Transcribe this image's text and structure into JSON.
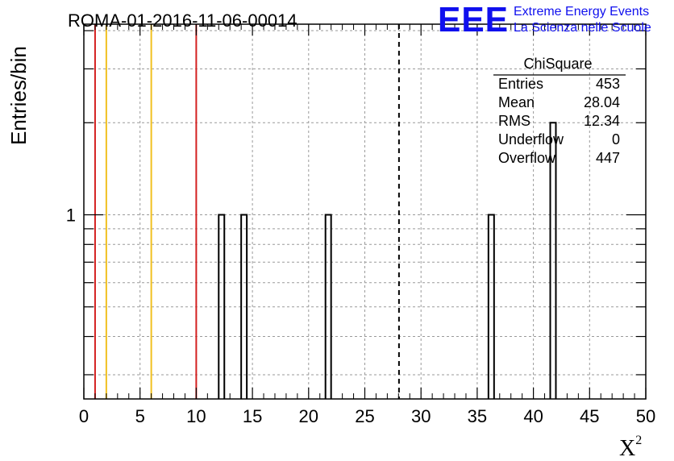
{
  "chart_data": {
    "type": "bar",
    "title": "ROMA-01-2016-11-06-00014",
    "xlabel": "X",
    "xlabel_superscript": "2",
    "ylabel": "Entries/bin",
    "xlim": [
      0,
      50
    ],
    "ylim_log": [
      0.25,
      4.2
    ],
    "y_scale": "log",
    "x_ticks": [
      0,
      5,
      10,
      15,
      20,
      25,
      30,
      35,
      40,
      45,
      50
    ],
    "x_tick_labels": [
      "0",
      "5",
      "10",
      "15",
      "20",
      "25",
      "30",
      "35",
      "40",
      "45",
      "50"
    ],
    "y_tick_labels": [
      {
        "value": 1,
        "label": "1"
      }
    ],
    "grid": true,
    "bin_width": 0.5,
    "bins": [
      {
        "x_low": 12.0,
        "x_high": 12.5,
        "count": 1
      },
      {
        "x_low": 14.0,
        "x_high": 14.5,
        "count": 1
      },
      {
        "x_low": 21.5,
        "x_high": 22.0,
        "count": 1
      },
      {
        "x_low": 36.0,
        "x_high": 36.5,
        "count": 1
      },
      {
        "x_low": 41.5,
        "x_high": 42.0,
        "count": 2
      }
    ],
    "reference_lines": [
      {
        "x": 1,
        "color": "#d42020",
        "style": "solid"
      },
      {
        "x": 2,
        "color": "#f0c020",
        "style": "solid"
      },
      {
        "x": 6,
        "color": "#f0c020",
        "style": "solid"
      },
      {
        "x": 10,
        "color": "#d42020",
        "style": "solid"
      },
      {
        "x": 28.04,
        "color": "#000000",
        "style": "dashed"
      }
    ],
    "stats_box": {
      "title": "ChiSquare",
      "rows": [
        {
          "label": "Entries",
          "value": "453"
        },
        {
          "label": "Mean",
          "value": "28.04"
        },
        {
          "label": "RMS",
          "value": "12.34"
        },
        {
          "label": "Underflow",
          "value": "0"
        },
        {
          "label": "Overflow",
          "value": "447"
        }
      ],
      "placement": "top-right"
    }
  },
  "logo": {
    "mark": "EEE",
    "line1": "Extreme Energy Events",
    "line2": "La Scienza nelle Scuole",
    "color": "#1010ee"
  }
}
